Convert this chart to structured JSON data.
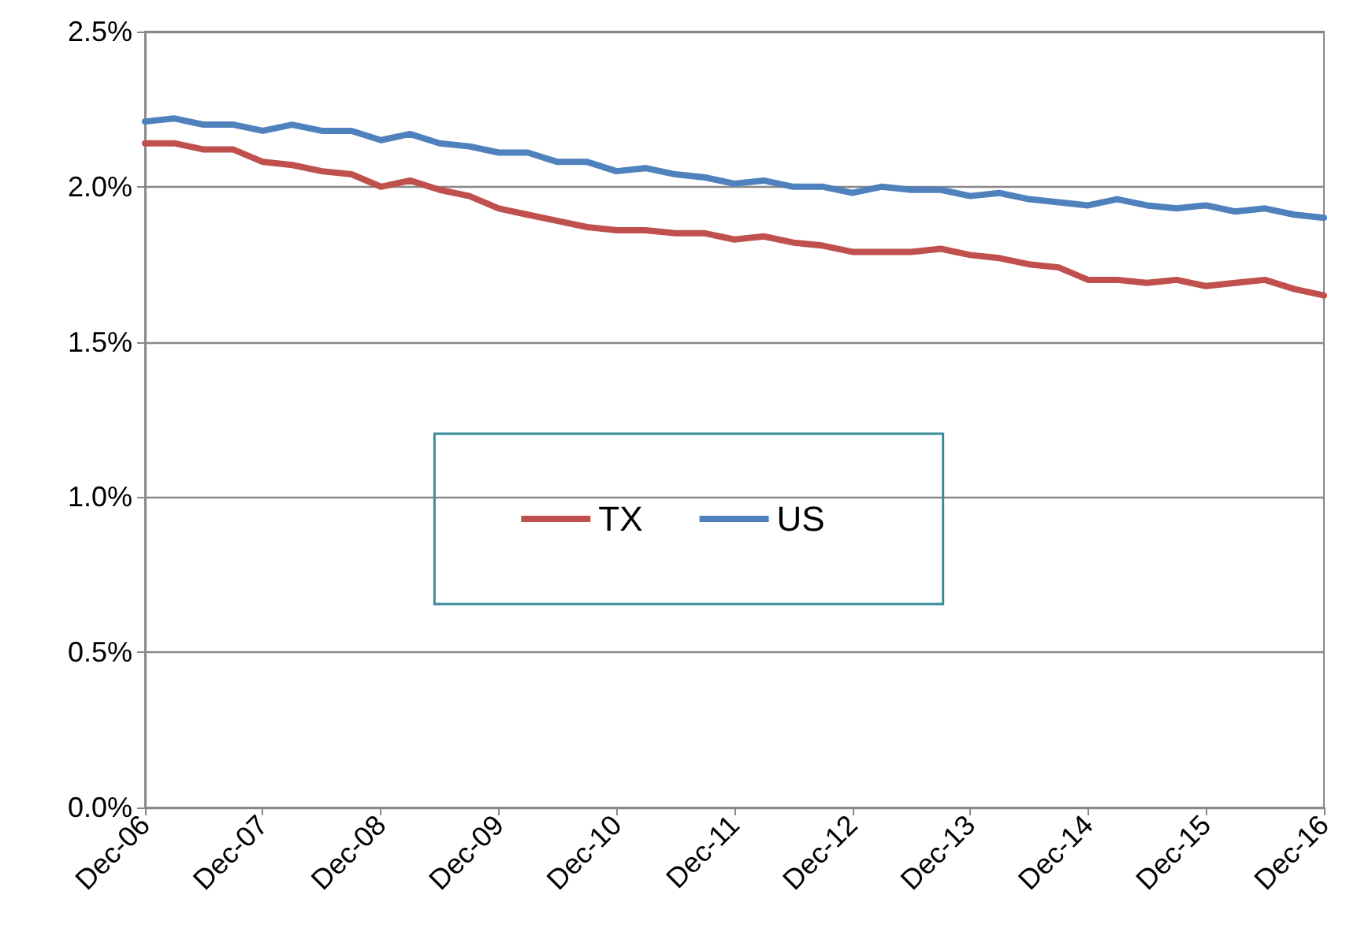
{
  "chart_data": {
    "type": "line",
    "x": [
      "2006-12",
      "2007-03",
      "2007-06",
      "2007-09",
      "2007-12",
      "2008-03",
      "2008-06",
      "2008-09",
      "2008-12",
      "2009-03",
      "2009-06",
      "2009-09",
      "2009-12",
      "2010-03",
      "2010-06",
      "2010-09",
      "2010-12",
      "2011-03",
      "2011-06",
      "2011-09",
      "2011-12",
      "2012-03",
      "2012-06",
      "2012-09",
      "2012-12",
      "2013-03",
      "2013-06",
      "2013-09",
      "2013-12",
      "2014-03",
      "2014-06",
      "2014-09",
      "2014-12",
      "2015-03",
      "2015-06",
      "2015-09",
      "2015-12",
      "2016-03",
      "2016-06",
      "2016-09",
      "2016-12"
    ],
    "series": [
      {
        "name": "TX",
        "color": "#c0504d",
        "values": [
          2.14,
          2.14,
          2.12,
          2.12,
          2.08,
          2.07,
          2.05,
          2.04,
          2.0,
          2.02,
          1.99,
          1.97,
          1.93,
          1.91,
          1.89,
          1.87,
          1.86,
          1.86,
          1.85,
          1.85,
          1.83,
          1.84,
          1.82,
          1.81,
          1.79,
          1.79,
          1.79,
          1.8,
          1.78,
          1.77,
          1.75,
          1.74,
          1.7,
          1.7,
          1.69,
          1.7,
          1.68,
          1.69,
          1.7,
          1.67,
          1.65
        ]
      },
      {
        "name": "US",
        "color": "#4f81bd",
        "values": [
          2.21,
          2.22,
          2.2,
          2.2,
          2.18,
          2.2,
          2.18,
          2.18,
          2.15,
          2.17,
          2.14,
          2.13,
          2.11,
          2.11,
          2.08,
          2.08,
          2.05,
          2.06,
          2.04,
          2.03,
          2.01,
          2.02,
          2.0,
          2.0,
          1.98,
          2.0,
          1.99,
          1.99,
          1.97,
          1.98,
          1.96,
          1.95,
          1.94,
          1.96,
          1.94,
          1.93,
          1.94,
          1.92,
          1.93,
          1.91,
          1.9
        ]
      }
    ],
    "xlim": [
      "2006-12",
      "2016-12"
    ],
    "xticks": [
      {
        "value": "2006-12",
        "label": "Dec-06"
      },
      {
        "value": "2007-12",
        "label": "Dec-07"
      },
      {
        "value": "2008-12",
        "label": "Dec-08"
      },
      {
        "value": "2009-12",
        "label": "Dec-09"
      },
      {
        "value": "2010-12",
        "label": "Dec-10"
      },
      {
        "value": "2011-12",
        "label": "Dec-11"
      },
      {
        "value": "2012-12",
        "label": "Dec-12"
      },
      {
        "value": "2013-12",
        "label": "Dec-13"
      },
      {
        "value": "2014-12",
        "label": "Dec-14"
      },
      {
        "value": "2015-12",
        "label": "Dec-15"
      },
      {
        "value": "2016-12",
        "label": "Dec-16"
      }
    ],
    "ylim": [
      0,
      2.5
    ],
    "yticks": [
      {
        "value": 0,
        "label": "0.0%"
      },
      {
        "value": 0.5,
        "label": "0.5%"
      },
      {
        "value": 1,
        "label": "1.0%"
      },
      {
        "value": 1.5,
        "label": "1.5%"
      },
      {
        "value": 2,
        "label": "2.0%"
      },
      {
        "value": 2.5,
        "label": "2.5%"
      }
    ],
    "grid": "y",
    "legend": "center",
    "marker": "none",
    "line_style": "solid"
  }
}
